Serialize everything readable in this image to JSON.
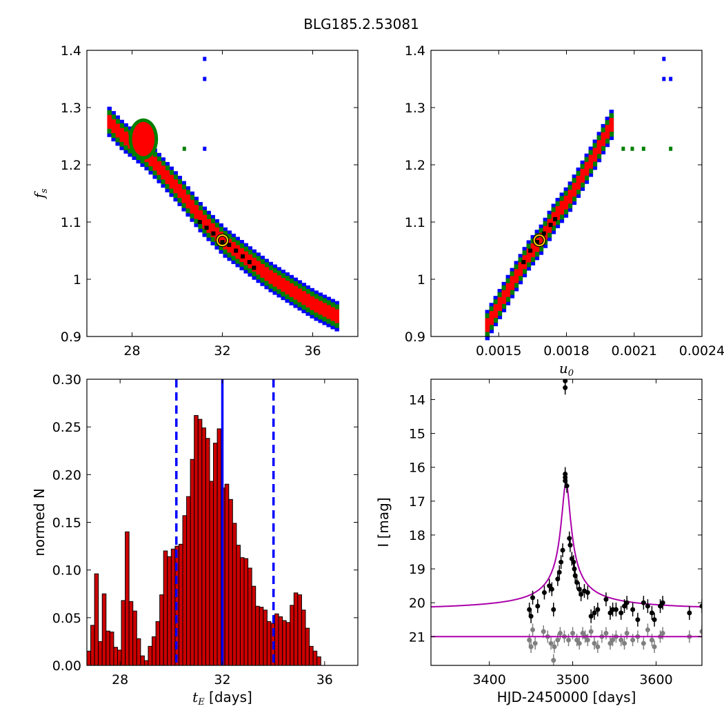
{
  "figure": {
    "title": "BLG185.2.53081"
  },
  "chart_data": [
    {
      "id": "fs_vs_tE",
      "type": "heatmap",
      "xlabel": "",
      "ylabel": "f_s",
      "xlim": [
        26,
        38
      ],
      "ylim": [
        0.9,
        1.4
      ],
      "xticks": [
        28,
        32,
        36
      ],
      "yticks": [
        0.9,
        1.0,
        1.1,
        1.2,
        1.3,
        1.4
      ],
      "colors": {
        "outer": "#0000ff",
        "mid": "#008000",
        "inner": "#ff0000",
        "core": "#000000"
      },
      "band": [
        [
          26.9,
          1.275
        ],
        [
          27.5,
          1.25
        ],
        [
          28.0,
          1.235
        ],
        [
          28.6,
          1.215
        ],
        [
          29.2,
          1.19
        ],
        [
          30.0,
          1.155
        ],
        [
          31.0,
          1.105
        ],
        [
          32.0,
          1.065
        ],
        [
          33.0,
          1.035
        ],
        [
          34.0,
          1.005
        ],
        [
          35.0,
          0.98
        ],
        [
          36.0,
          0.955
        ],
        [
          37.0,
          0.935
        ]
      ],
      "blob": {
        "center": [
          28.5,
          1.245
        ],
        "size": [
          0.5,
          0.03
        ]
      },
      "core_points": [
        [
          31.0,
          1.1
        ],
        [
          31.3,
          1.09
        ],
        [
          31.6,
          1.08
        ],
        [
          32.0,
          1.065
        ],
        [
          32.3,
          1.06
        ],
        [
          32.6,
          1.05
        ],
        [
          32.9,
          1.04
        ],
        [
          33.2,
          1.03
        ],
        [
          33.4,
          1.02
        ]
      ],
      "outliers": [
        [
          31.2,
          1.385
        ],
        [
          31.2,
          1.35
        ],
        [
          31.2,
          1.228
        ],
        [
          30.3,
          1.228
        ]
      ],
      "best_fit": [
        32.0,
        1.068
      ]
    },
    {
      "id": "fs_vs_u0",
      "type": "heatmap",
      "xlabel": "u_0",
      "ylabel": "",
      "xlim": [
        0.0012,
        0.0024
      ],
      "ylim": [
        0.9,
        1.4
      ],
      "xticks": [
        0.0015,
        0.0018,
        0.0021,
        0.0024
      ],
      "xtick_labels": [
        "0.0015",
        "0.0018",
        "0.0021",
        "0.0024"
      ],
      "yticks": [
        0.9,
        1.0,
        1.1,
        1.2,
        1.3,
        1.4
      ],
      "colors": {
        "outer": "#0000ff",
        "mid": "#008000",
        "inner": "#ff0000",
        "core": "#000000"
      },
      "band": [
        [
          0.00144,
          0.92
        ],
        [
          0.0015,
          0.96
        ],
        [
          0.00156,
          1.0
        ],
        [
          0.00162,
          1.04
        ],
        [
          0.00168,
          1.07
        ],
        [
          0.00174,
          1.11
        ],
        [
          0.0018,
          1.14
        ],
        [
          0.00186,
          1.18
        ],
        [
          0.00192,
          1.22
        ],
        [
          0.00196,
          1.25
        ],
        [
          0.00199,
          1.27
        ]
      ],
      "core_points": [
        [
          0.00161,
          1.03
        ],
        [
          0.00164,
          1.05
        ],
        [
          0.00167,
          1.065
        ],
        [
          0.0017,
          1.08
        ],
        [
          0.00173,
          1.095
        ],
        [
          0.00175,
          1.105
        ]
      ],
      "outliers": [
        [
          0.00223,
          1.385
        ],
        [
          0.00223,
          1.35
        ],
        [
          0.00226,
          1.35
        ],
        [
          0.00226,
          1.228
        ],
        [
          0.00214,
          1.228
        ],
        [
          0.00209,
          1.228
        ],
        [
          0.00205,
          1.228
        ]
      ],
      "best_fit": [
        0.00168,
        1.068
      ]
    },
    {
      "id": "tE_histogram",
      "type": "bar",
      "xlabel": "t_E [days]",
      "ylabel": "normed N",
      "xlim": [
        26.7,
        37.3
      ],
      "ylim": [
        0,
        0.3
      ],
      "xticks": [
        28,
        32,
        36
      ],
      "yticks": [
        0,
        0.05,
        0.1,
        0.15,
        0.2,
        0.25,
        0.3
      ],
      "ytick_labels": [
        "0.00",
        "0.05",
        "0.10",
        "0.15",
        "0.20",
        "0.25",
        "0.30"
      ],
      "bin_start": 26.7,
      "bin_width": 0.15,
      "values": [
        0.015,
        0.042,
        0.096,
        0.025,
        0.075,
        0.036,
        0.035,
        0.019,
        0.016,
        0.068,
        0.14,
        0.067,
        0.057,
        0.028,
        0.01,
        0.005,
        0.02,
        0.03,
        0.046,
        0.074,
        0.12,
        0.114,
        0.122,
        0.125,
        0.127,
        0.157,
        0.177,
        0.216,
        0.262,
        0.258,
        0.249,
        0.238,
        0.193,
        0.233,
        0.248,
        0.186,
        0.19,
        0.174,
        0.149,
        0.126,
        0.113,
        0.112,
        0.102,
        0.083,
        0.062,
        0.061,
        0.058,
        0.046,
        0.044,
        0.054,
        0.051,
        0.047,
        0.045,
        0.063,
        0.076,
        0.074,
        0.058,
        0.039,
        0.02,
        0.015,
        0.009
      ],
      "bar_color": "#cc0000",
      "vlines": [
        {
          "x": 32.0,
          "style": "solid",
          "color": "#0000ff"
        },
        {
          "x": 30.2,
          "style": "dashed",
          "color": "#0000ff"
        },
        {
          "x": 34.0,
          "style": "dashed",
          "color": "#0000ff"
        }
      ]
    },
    {
      "id": "lightcurve",
      "type": "scatter",
      "xlabel": "HJD-2450000 [days]",
      "ylabel": "I [mag]",
      "xlim": [
        3330,
        3655
      ],
      "ylim": [
        21.85,
        13.4
      ],
      "xticks": [
        3400,
        3500,
        3600
      ],
      "yticks": [
        14,
        15,
        16,
        17,
        18,
        19,
        20,
        21
      ],
      "model": {
        "t0": 3492,
        "base": 20.25,
        "peak": 16.45,
        "tau": 5.5,
        "color": "#aa00aa"
      },
      "baseline_model": {
        "mag": 21.0,
        "color": "#aa00aa"
      },
      "black_points": [
        [
          3491,
          13.45
        ],
        [
          3491,
          13.65
        ],
        [
          3491,
          16.2
        ],
        [
          3491,
          16.3
        ],
        [
          3491,
          16.4
        ],
        [
          3493,
          16.55
        ],
        [
          3496,
          18.1
        ],
        [
          3497,
          18.3
        ],
        [
          3499,
          18.7
        ],
        [
          3501,
          18.8
        ],
        [
          3502,
          19.0
        ],
        [
          3503,
          19.2
        ],
        [
          3505,
          19.4
        ],
        [
          3508,
          19.6
        ],
        [
          3510,
          19.75
        ],
        [
          3514,
          19.65
        ],
        [
          3518,
          19.7
        ],
        [
          3522,
          20.4
        ],
        [
          3526,
          20.3
        ],
        [
          3530,
          20.2
        ],
        [
          3540,
          19.9
        ],
        [
          3545,
          20.3
        ],
        [
          3548,
          20.2
        ],
        [
          3552,
          20.2
        ],
        [
          3558,
          20.3
        ],
        [
          3562,
          20.1
        ],
        [
          3565,
          20.0
        ],
        [
          3572,
          20.2
        ],
        [
          3578,
          20.5
        ],
        [
          3585,
          20.0
        ],
        [
          3590,
          20.1
        ],
        [
          3595,
          20.3
        ],
        [
          3598,
          20.5
        ],
        [
          3605,
          20.1
        ],
        [
          3608,
          20.0
        ],
        [
          3640,
          20.3
        ],
        [
          3655,
          20.1
        ],
        [
          3448,
          20.2
        ],
        [
          3450,
          20.4
        ],
        [
          3452,
          19.85
        ],
        [
          3458,
          20.1
        ],
        [
          3466,
          19.7
        ],
        [
          3472,
          19.5
        ],
        [
          3475,
          19.6
        ],
        [
          3477,
          20.2
        ],
        [
          3482,
          19.3
        ],
        [
          3484,
          19.1
        ],
        [
          3486,
          18.8
        ],
        [
          3488,
          18.45
        ]
      ],
      "gray_points": [
        [
          3448,
          21.1
        ],
        [
          3450,
          21.3
        ],
        [
          3452,
          20.8
        ],
        [
          3455,
          21.2
        ],
        [
          3465,
          20.85
        ],
        [
          3470,
          21.0
        ],
        [
          3474,
          21.2
        ],
        [
          3477,
          21.7
        ],
        [
          3478,
          21.3
        ],
        [
          3482,
          21.1
        ],
        [
          3485,
          20.9
        ],
        [
          3490,
          21.0
        ],
        [
          3495,
          21.1
        ],
        [
          3500,
          20.9
        ],
        [
          3505,
          21.1
        ],
        [
          3508,
          21.2
        ],
        [
          3512,
          20.9
        ],
        [
          3515,
          21.0
        ],
        [
          3518,
          21.1
        ],
        [
          3522,
          20.85
        ],
        [
          3526,
          21.2
        ],
        [
          3530,
          21.3
        ],
        [
          3535,
          21.0
        ],
        [
          3540,
          20.9
        ],
        [
          3545,
          21.2
        ],
        [
          3548,
          21.1
        ],
        [
          3552,
          21.0
        ],
        [
          3558,
          21.1
        ],
        [
          3562,
          21.2
        ],
        [
          3565,
          20.9
        ],
        [
          3572,
          21.1
        ],
        [
          3578,
          21.0
        ],
        [
          3585,
          21.2
        ],
        [
          3590,
          20.8
        ],
        [
          3595,
          21.1
        ],
        [
          3598,
          21.3
        ],
        [
          3605,
          21.0
        ],
        [
          3608,
          20.9
        ],
        [
          3640,
          21.0
        ],
        [
          3655,
          20.85
        ]
      ],
      "black_color": "#000000",
      "gray_color": "#808080"
    }
  ]
}
